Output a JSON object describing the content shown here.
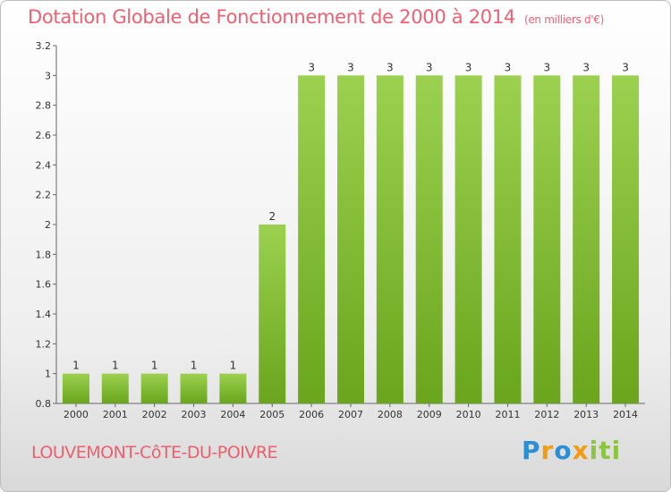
{
  "chart_data": {
    "type": "bar",
    "title": "Dotation Globale de Fonctionnement de 2000 à 2014",
    "unit_note": "(en milliers d'€)",
    "categories": [
      "2000",
      "2001",
      "2002",
      "2003",
      "2004",
      "2005",
      "2006",
      "2007",
      "2008",
      "2009",
      "2010",
      "2011",
      "2012",
      "2013",
      "2014"
    ],
    "values": [
      1,
      1,
      1,
      1,
      1,
      2,
      3,
      3,
      3,
      3,
      3,
      3,
      3,
      3,
      3
    ],
    "data_labels": [
      "1",
      "1",
      "1",
      "1",
      "1",
      "2",
      "3",
      "3",
      "3",
      "3",
      "3",
      "3",
      "3",
      "3",
      "3"
    ],
    "yticks": [
      "0.8",
      "1",
      "1.2",
      "1.4",
      "1.6",
      "1.8",
      "2",
      "2.2",
      "2.4",
      "2.6",
      "2.8",
      "3",
      "3.2"
    ],
    "ylim": [
      0.8,
      3.2
    ],
    "grid": false,
    "bar_color": "#8cc63f"
  },
  "footer": {
    "place": "LOUVEMONT-CôTE-DU-POIVRE",
    "logo_text": "Proxiti"
  },
  "colors": {
    "title": "#f06070",
    "place": "#ec5f6c",
    "logo_blue": "#2a8fd6",
    "logo_orange": "#f39c12",
    "logo_green": "#8cc63f"
  }
}
